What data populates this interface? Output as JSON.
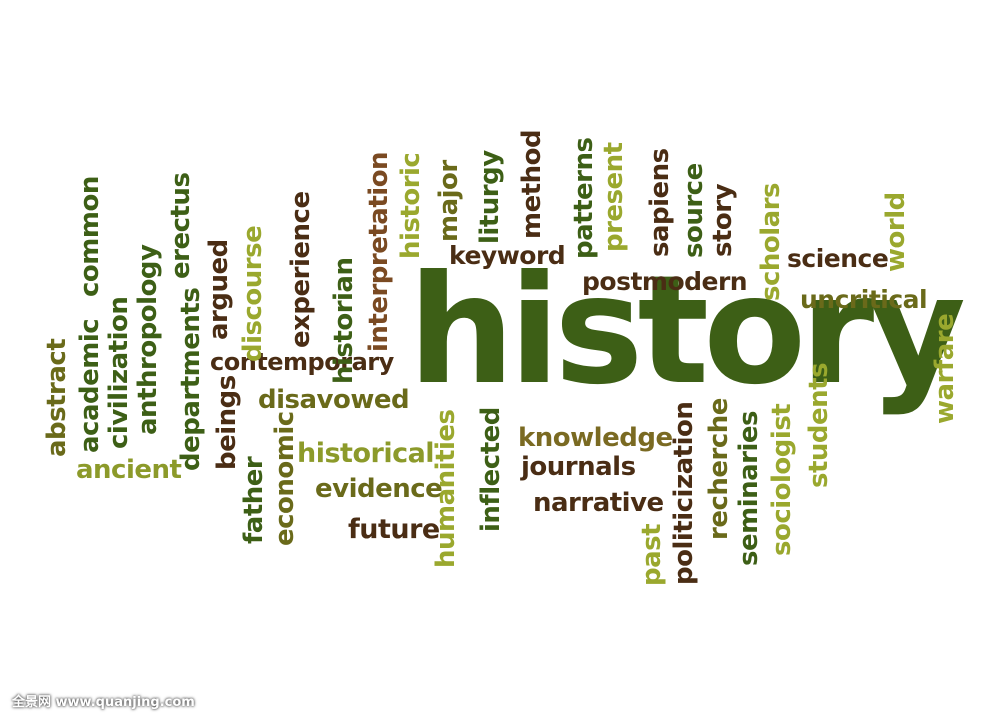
{
  "words": [
    {
      "text": "history",
      "color": "#3d5f16"
    },
    {
      "text": "keyword",
      "color": "#4a2d14"
    },
    {
      "text": "postmodern",
      "color": "#4a2d14"
    },
    {
      "text": "science",
      "color": "#4a2d14"
    },
    {
      "text": "uncritical",
      "color": "#6a6a1a"
    },
    {
      "text": "contemporary",
      "color": "#4a2d14"
    },
    {
      "text": "disavowed",
      "color": "#6a6a1a"
    },
    {
      "text": "historical",
      "color": "#8c9a2a"
    },
    {
      "text": "evidence",
      "color": "#6a6a1a"
    },
    {
      "text": "future",
      "color": "#4a2d14"
    },
    {
      "text": "knowledge",
      "color": "#7a6a22"
    },
    {
      "text": "journals",
      "color": "#4a2d14"
    },
    {
      "text": "narrative",
      "color": "#4a2d14"
    },
    {
      "text": "ancient",
      "color": "#8c9a2a"
    },
    {
      "text": "abstract",
      "color": "#6a6a1a"
    },
    {
      "text": "academic",
      "color": "#3d5f16"
    },
    {
      "text": "common",
      "color": "#3d5f16"
    },
    {
      "text": "civilization",
      "color": "#3d5f16"
    },
    {
      "text": "anthropology",
      "color": "#3d5f16"
    },
    {
      "text": "erectus",
      "color": "#3d5f16"
    },
    {
      "text": "departments",
      "color": "#3d5f16"
    },
    {
      "text": "argued",
      "color": "#4a2d14"
    },
    {
      "text": "discourse",
      "color": "#9aa82e"
    },
    {
      "text": "beings",
      "color": "#4a2d14"
    },
    {
      "text": "experience",
      "color": "#4a2d14"
    },
    {
      "text": "father",
      "color": "#3d5f16"
    },
    {
      "text": "economic",
      "color": "#6a6a1a"
    },
    {
      "text": "historian",
      "color": "#3d5f16"
    },
    {
      "text": "interpretation",
      "color": "#7a4a22"
    },
    {
      "text": "historic",
      "color": "#9aa82e"
    },
    {
      "text": "major",
      "color": "#6a6a1a"
    },
    {
      "text": "liturgy",
      "color": "#3d5f16"
    },
    {
      "text": "method",
      "color": "#4a2d14"
    },
    {
      "text": "patterns",
      "color": "#3d5f16"
    },
    {
      "text": "present",
      "color": "#9aa82e"
    },
    {
      "text": "sapiens",
      "color": "#4a2d14"
    },
    {
      "text": "source",
      "color": "#3d5f16"
    },
    {
      "text": "story",
      "color": "#4a2d14"
    },
    {
      "text": "scholars",
      "color": "#9aa82e"
    },
    {
      "text": "world",
      "color": "#9aa82e"
    },
    {
      "text": "humanities",
      "color": "#9aa82e"
    },
    {
      "text": "inflected",
      "color": "#3d5f16"
    },
    {
      "text": "past",
      "color": "#9aa82e"
    },
    {
      "text": "politicization",
      "color": "#4a2d14"
    },
    {
      "text": "recherche",
      "color": "#6a6a1a"
    },
    {
      "text": "seminaries",
      "color": "#3d5f16"
    },
    {
      "text": "sociologist",
      "color": "#9aa82e"
    },
    {
      "text": "students",
      "color": "#9aa82e"
    },
    {
      "text": "warfare",
      "color": "#9aa82e"
    }
  ],
  "watermark": "全景网  www.quanjing.com"
}
